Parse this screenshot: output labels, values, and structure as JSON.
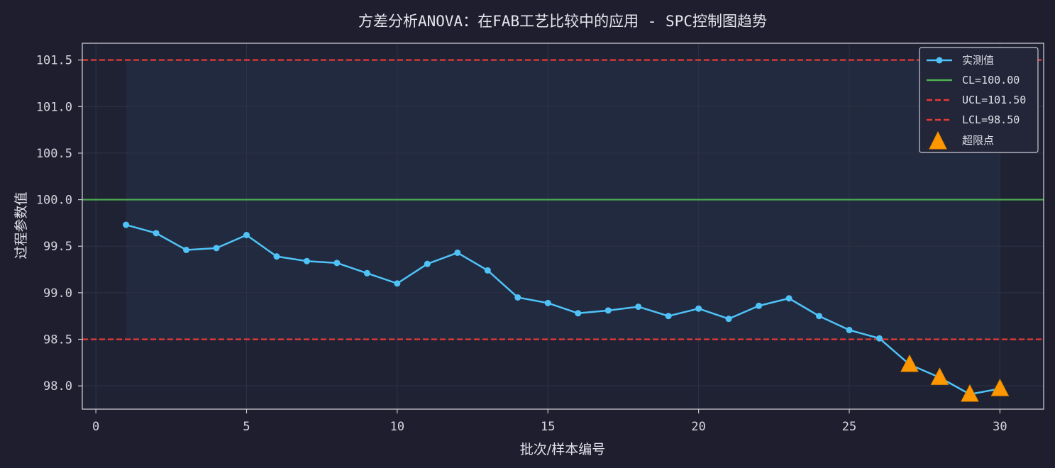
{
  "chart_data": {
    "type": "line",
    "title": "方差分析ANOVA：在FAB工艺比较中的应用 - SPC控制图趋势",
    "xlabel": "批次/样本编号",
    "ylabel": "过程参数值",
    "xlim": [
      -0.45,
      31.45
    ],
    "ylim": [
      97.75,
      101.68
    ],
    "xticks": [
      0,
      5,
      10,
      15,
      20,
      25,
      30
    ],
    "xtick_labels": [
      "0",
      "5",
      "10",
      "15",
      "20",
      "25",
      "30"
    ],
    "yticks": [
      98.0,
      98.5,
      99.0,
      99.5,
      100.0,
      100.5,
      101.0,
      101.5
    ],
    "ytick_labels": [
      "98.0",
      "98.5",
      "99.0",
      "99.5",
      "100.0",
      "100.5",
      "101.0",
      "101.5"
    ],
    "grid": true,
    "legend_position": "top-right",
    "series": [
      {
        "name": "实测值",
        "color": "#4fc3f7",
        "x": [
          1,
          2,
          3,
          4,
          5,
          6,
          7,
          8,
          9,
          10,
          11,
          12,
          13,
          14,
          15,
          16,
          17,
          18,
          19,
          20,
          21,
          22,
          23,
          24,
          25,
          26,
          27,
          28,
          29,
          30
        ],
        "y": [
          99.73,
          99.64,
          99.46,
          99.48,
          99.62,
          99.39,
          99.34,
          99.32,
          99.21,
          99.1,
          99.31,
          99.43,
          99.24,
          98.95,
          98.89,
          98.78,
          98.81,
          98.85,
          98.75,
          98.83,
          98.72,
          98.86,
          98.94,
          98.75,
          98.6,
          98.51,
          98.23,
          98.09,
          97.91,
          97.97
        ]
      }
    ],
    "control_lines": [
      {
        "name": "CL=100.00",
        "value": 100.0,
        "color": "#4caf50",
        "style": "solid"
      },
      {
        "name": "UCL=101.50",
        "value": 101.5,
        "color": "#e53935",
        "style": "dashed"
      },
      {
        "name": "LCL=98.50",
        "value": 98.5,
        "color": "#e53935",
        "style": "dashed"
      }
    ],
    "out_of_limit": {
      "name": "超限点",
      "color": "#ff9800",
      "marker": "triangle",
      "x": [
        27,
        28,
        29,
        30
      ],
      "y": [
        98.23,
        98.09,
        97.91,
        97.97
      ]
    },
    "colors": {
      "background": "#1e1e2e",
      "plot_background": "#1f2233",
      "shaded_region": "#222a40",
      "grid": "#2e3246",
      "axis": "#c8c8d0"
    }
  }
}
